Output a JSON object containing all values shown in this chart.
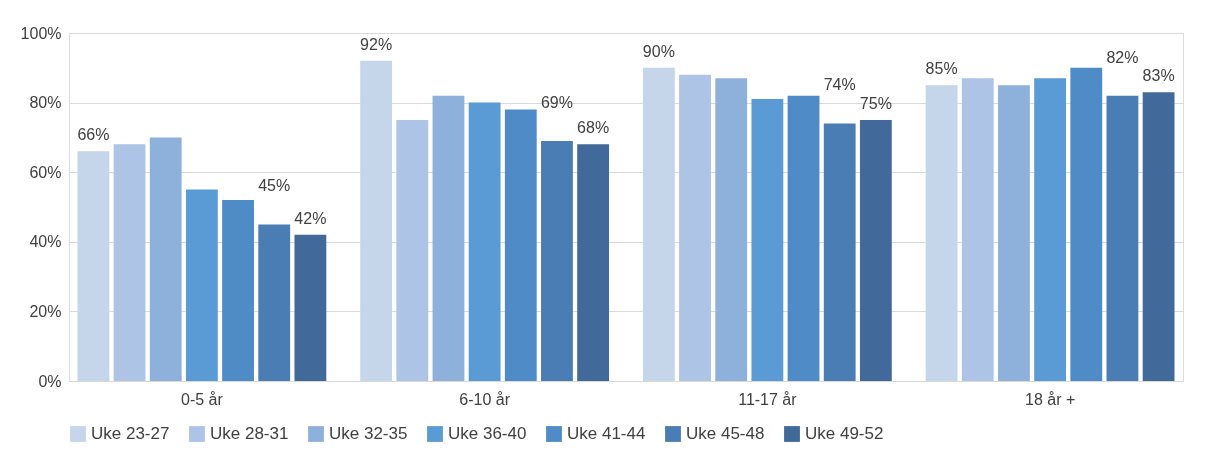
{
  "chart_data": {
    "type": "bar",
    "categories": [
      "0-5 år",
      "6-10 år",
      "11-17 år",
      "18 år +"
    ],
    "series": [
      {
        "name": "Uke 23-27",
        "color": "#c5d5ea",
        "values": [
          66,
          92,
          90,
          85
        ],
        "value_labels": [
          "66%",
          "92%",
          "90%",
          "85%"
        ]
      },
      {
        "name": "Uke 28-31",
        "color": "#adc4e6",
        "values": [
          68,
          75,
          88,
          87
        ]
      },
      {
        "name": "Uke 32-35",
        "color": "#8eb1dc",
        "values": [
          70,
          82,
          87,
          85
        ]
      },
      {
        "name": "Uke 36-40",
        "color": "#5b9bd5",
        "values": [
          55,
          80,
          81,
          87
        ]
      },
      {
        "name": "Uke 41-44",
        "color": "#4f8bc6",
        "values": [
          52,
          78,
          82,
          90
        ]
      },
      {
        "name": "Uke 45-48",
        "color": "#4a7db4",
        "values": [
          45,
          69,
          74,
          82
        ],
        "value_labels": [
          "45%",
          "69%",
          "74%",
          "82%"
        ]
      },
      {
        "name": "Uke 49-52",
        "color": "#41699a",
        "values": [
          42,
          68,
          75,
          83
        ],
        "value_labels": [
          "42%",
          "68%",
          "75%",
          "83%"
        ]
      }
    ],
    "ylim": [
      0,
      100
    ],
    "yticks": [
      {
        "value": 0,
        "label": "0%"
      },
      {
        "value": 20,
        "label": "20%"
      },
      {
        "value": 40,
        "label": "40%"
      },
      {
        "value": 60,
        "label": "60%"
      },
      {
        "value": 80,
        "label": "80%"
      },
      {
        "value": 100,
        "label": "100%"
      }
    ],
    "grid": "y",
    "legend": "bottom"
  }
}
